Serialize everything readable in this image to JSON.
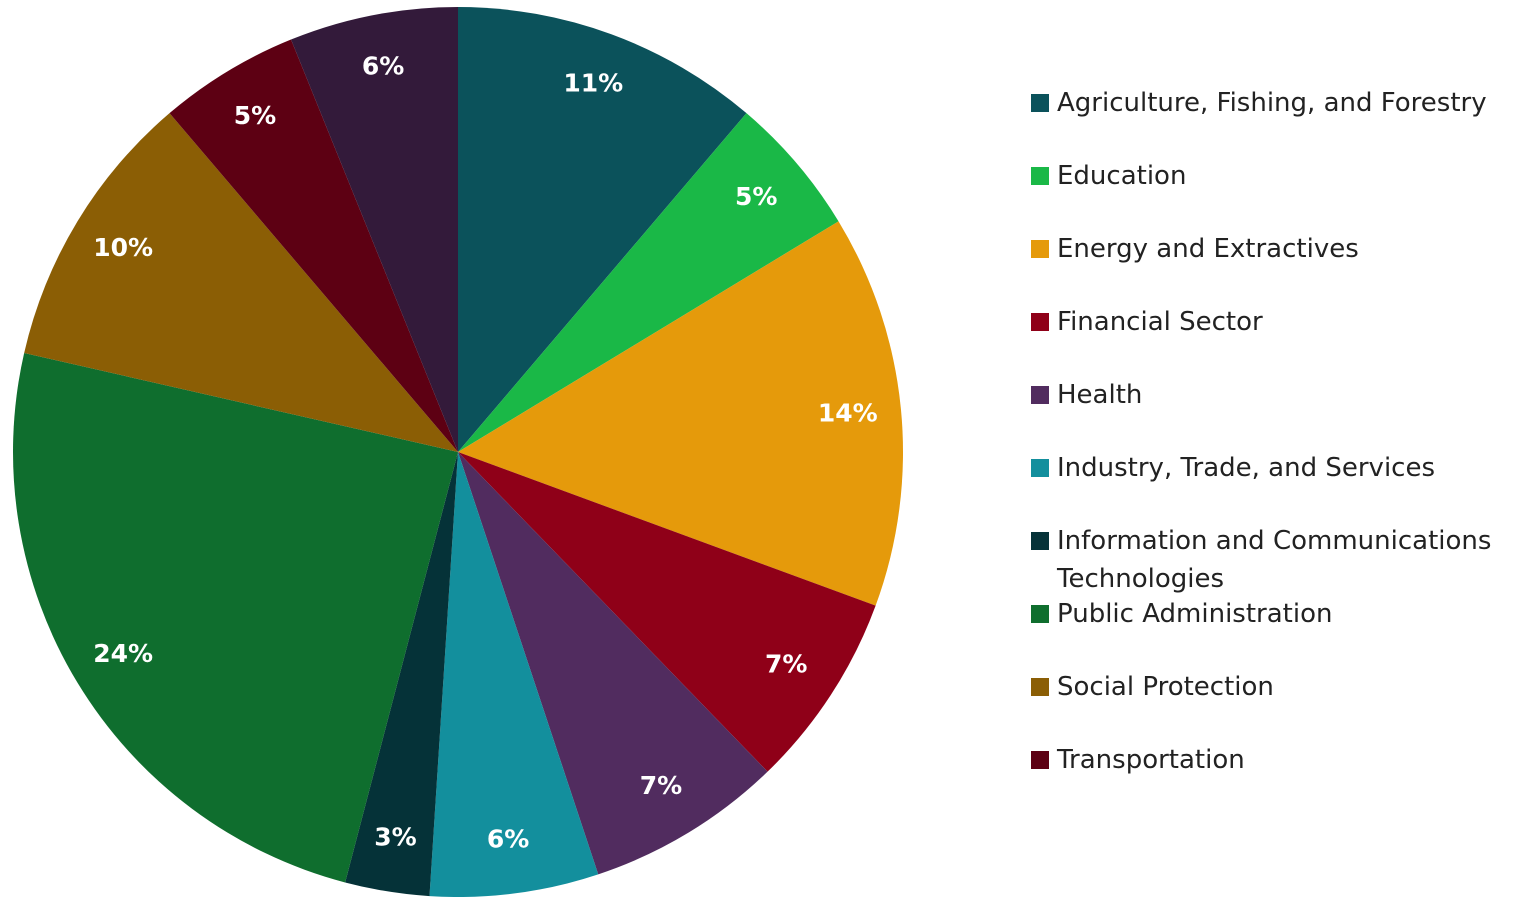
{
  "chart_data": {
    "type": "pie",
    "categories": [
      "Agriculture, Fishing, and Forestry",
      "Education",
      "Energy and Extractives",
      "Financial Sector",
      "Health",
      "Industry, Trade, and Services",
      "Information and Communications Technologies",
      "Public Administration",
      "Social Protection",
      "Transportation",
      null
    ],
    "values": [
      11,
      5,
      14,
      7,
      7,
      6,
      3,
      24,
      10,
      5,
      6
    ],
    "value_labels": [
      "11%",
      "5%",
      "14%",
      "7%",
      "7%",
      "6%",
      "3%",
      "24%",
      "10%",
      "5%",
      "6%"
    ],
    "colors": [
      "#0b525b",
      "#1ab847",
      "#e59a0b",
      "#8f0018",
      "#512c5f",
      "#138f9d",
      "#053238",
      "#0f6e2e",
      "#8b5e05",
      "#5d0013",
      "#331a3a"
    ],
    "legend": "right"
  }
}
